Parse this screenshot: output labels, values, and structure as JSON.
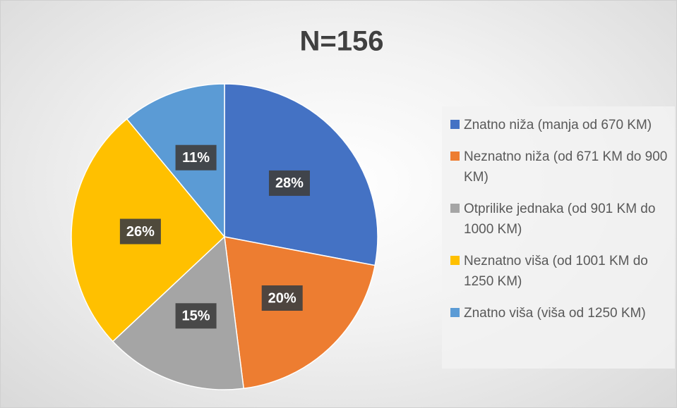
{
  "chart_data": {
    "type": "pie",
    "title": "N=156",
    "categories": [
      "Znatno niža (manja od 670 KM)",
      "Neznatno niža (od 671 KM do 900 KM)",
      "Otprilike jednaka (od 901 KM do 1000 KM)",
      "Neznatno viša (od 1001 KM do 1250 KM)",
      "Znatno viša (viša od 1250 KM)"
    ],
    "values": [
      28,
      20,
      15,
      26,
      11
    ],
    "value_labels": [
      "28%",
      "20%",
      "15%",
      "26%",
      "11%"
    ],
    "colors": [
      "#4472c4",
      "#ed7d31",
      "#a5a5a5",
      "#ffc000",
      "#5b9bd5"
    ],
    "legend": "right"
  }
}
